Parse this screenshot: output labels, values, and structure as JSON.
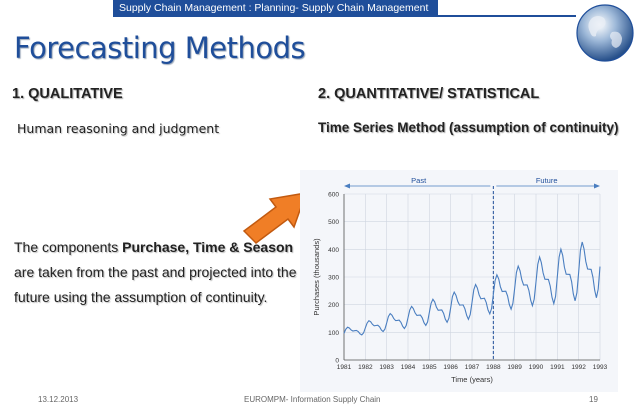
{
  "header": {
    "banner": "Supply Chain Management : Planning- Supply Chain Management",
    "title": "Forecasting Methods"
  },
  "qualitative": {
    "heading": "1.   QUALITATIVE",
    "subheading": "Human reasoning and judgment",
    "desc_before": "The components ",
    "desc_bold": "Purchase, Time & Season",
    "desc_after": " are taken from the past and projected into the future using the assumption of continuity."
  },
  "quantitative": {
    "heading": "2.   QUANTITATIVE/ STATISTICAL",
    "subheading": "Time Series Method (assumption of continuity)"
  },
  "footer": {
    "date": "13.12.2013",
    "center": "EUROMPM- Information Supply Chain",
    "page": "19"
  },
  "colors": {
    "brand_blue": "#1f4e9a",
    "arrow_orange": "#f07e26",
    "series_blue": "#4a7ec0"
  },
  "chart_data": {
    "type": "line",
    "xlabel": "Time (years)",
    "ylabel": "Purchases (thousands)",
    "x_ticks": [
      "1981",
      "1982",
      "1983",
      "1984",
      "1985",
      "1986",
      "1987",
      "1988",
      "1989",
      "1990",
      "1991",
      "1992",
      "1993"
    ],
    "y_ticks": [
      "0",
      "100",
      "200",
      "300",
      "400",
      "500",
      "600"
    ],
    "ylim": [
      0,
      600
    ],
    "xlim": [
      1981,
      1993
    ],
    "divider_year": 1988,
    "period_labels": [
      "Past",
      "Future"
    ],
    "series": [
      {
        "name": "Purchases",
        "trend": [
          100,
          120,
          140,
          160,
          180,
          200,
          220,
          250,
          275,
          300,
          320,
          340,
          360
        ],
        "season_amp": [
          25,
          30,
          40,
          50,
          60,
          70,
          80,
          90,
          100,
          115,
          130,
          140,
          150
        ]
      }
    ]
  }
}
